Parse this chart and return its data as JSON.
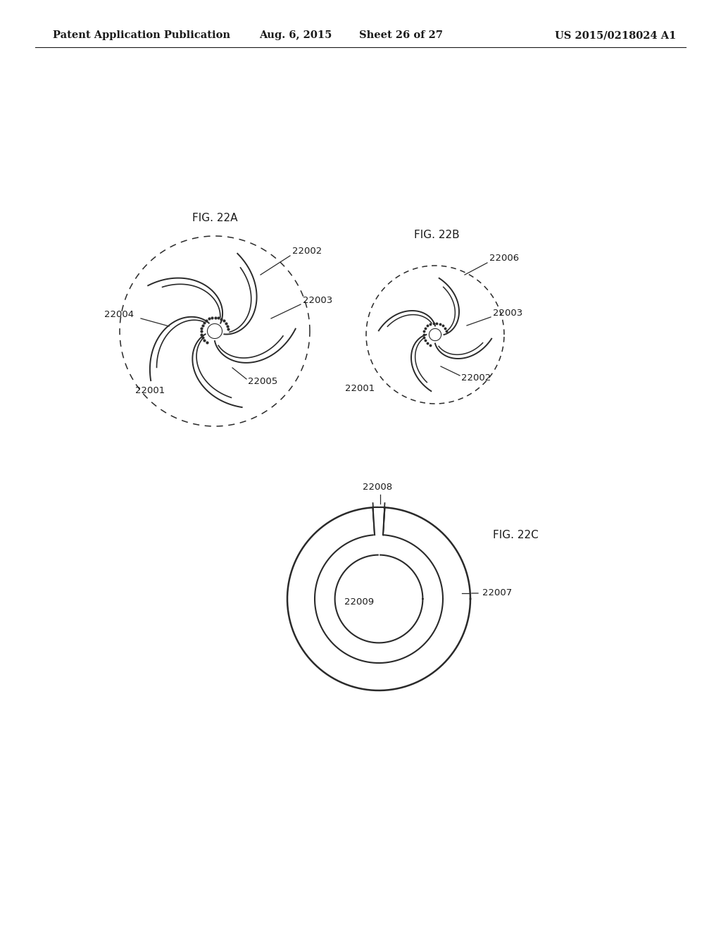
{
  "bg_color": "#ffffff",
  "header_text": "Patent Application Publication",
  "header_date": "Aug. 6, 2015",
  "header_sheet": "Sheet 26 of 27",
  "header_patent": "US 2015/0218024 A1",
  "text_color": "#1a1a1a",
  "line_color": "#2a2a2a",
  "fig22a_label": "FIG. 22A",
  "fig22b_label": "FIG. 22B",
  "fig22c_label": "FIG. 22C",
  "label_22001_a": "22001",
  "label_22002_a": "22002",
  "label_22003_a": "22003",
  "label_22004_a": "22004",
  "label_22005_a": "22005",
  "label_22001_b": "22001",
  "label_22002_b": "22002",
  "label_22003_b": "22003",
  "label_22006_b": "22006",
  "label_22007_c": "22007",
  "label_22008_c": "22008",
  "label_22009_c": "22009"
}
